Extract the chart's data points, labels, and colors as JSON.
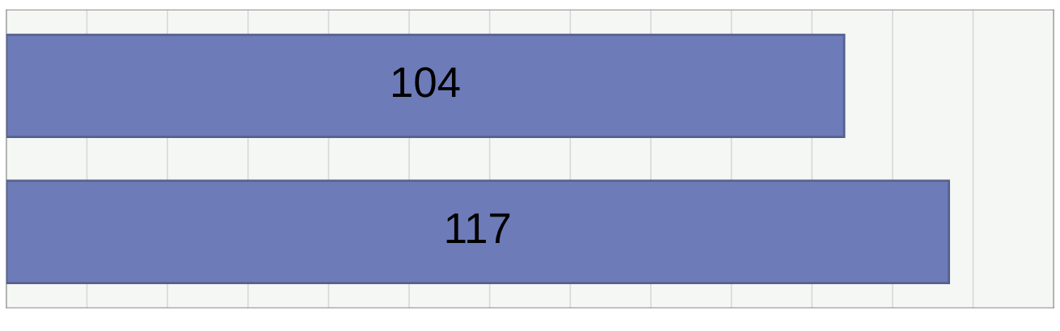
{
  "chart_data": {
    "type": "bar",
    "orientation": "horizontal",
    "categories": [
      null,
      null
    ],
    "values": [
      104,
      117
    ],
    "color": "#6d7bb8",
    "data_labels": true,
    "xlim": [
      0,
      130
    ],
    "xticks": [
      {
        "value": 0,
        "label": null
      },
      {
        "value": 10,
        "label": null
      },
      {
        "value": 20,
        "label": null
      },
      {
        "value": 30,
        "label": null
      },
      {
        "value": 40,
        "label": null
      },
      {
        "value": 50,
        "label": null
      },
      {
        "value": 60,
        "label": null
      },
      {
        "value": 70,
        "label": null
      },
      {
        "value": 80,
        "label": null
      },
      {
        "value": 90,
        "label": null
      },
      {
        "value": 100,
        "label": null
      },
      {
        "value": 110,
        "label": null
      },
      {
        "value": 120,
        "label": null
      },
      {
        "value": 130,
        "label": null
      }
    ],
    "grid": "x"
  }
}
